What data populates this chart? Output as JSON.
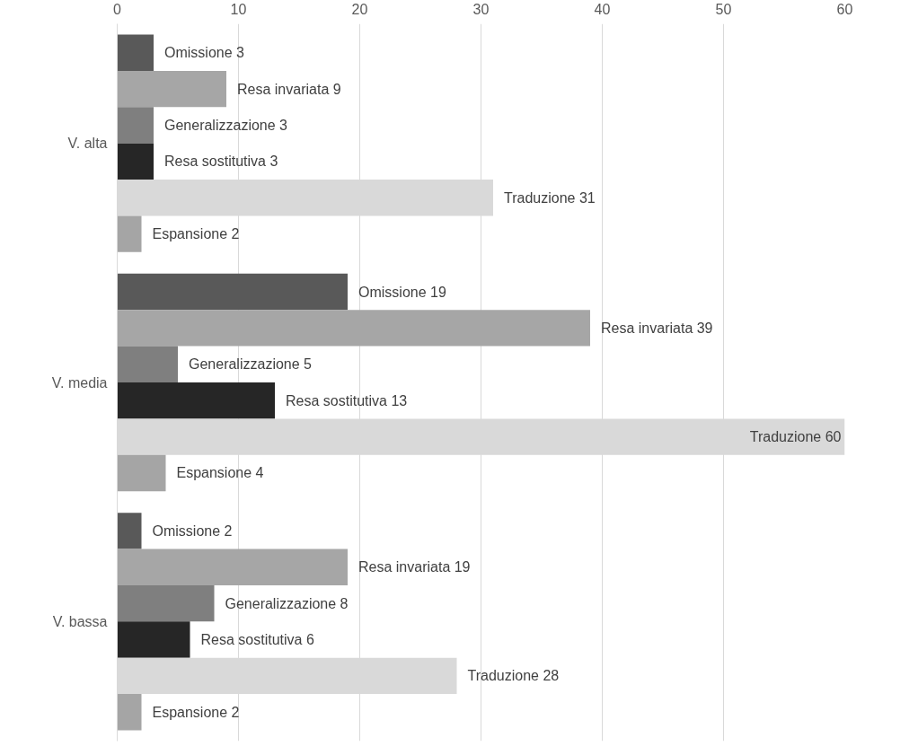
{
  "chart_data": {
    "type": "bar",
    "orientation": "horizontal",
    "categories": [
      "V. alta",
      "V. media",
      "V. bassa"
    ],
    "series": [
      {
        "color": "#595959",
        "values": [
          3,
          19,
          2
        ],
        "value_labels": [
          "Omissione 3",
          "Omissione 19",
          "Omissione 2"
        ]
      },
      {
        "color": "#a6a6a6",
        "values": [
          9,
          39,
          19
        ],
        "value_labels": [
          "Resa invariata 9",
          "Resa invariata 39",
          "Resa invariata 19"
        ]
      },
      {
        "color": "#7f7f7f",
        "values": [
          3,
          5,
          8
        ],
        "value_labels": [
          "Generalizzazione 3",
          "Generalizzazione 5",
          "Generalizzazione 8"
        ]
      },
      {
        "color": "#262626",
        "values": [
          3,
          13,
          6
        ],
        "value_labels": [
          "Resa sostitutiva 3",
          "Resa sostitutiva 13",
          "Resa sostitutiva 6"
        ]
      },
      {
        "color": "#d9d9d9",
        "values": [
          31,
          60,
          28
        ],
        "value_labels": [
          "Traduzione 31",
          "Traduzione 60",
          "Traduzione 28"
        ]
      },
      {
        "color": "#a5a5a5",
        "values": [
          2,
          4,
          2
        ],
        "value_labels": [
          "Espansione 2",
          "Espansione 4",
          "Espansione 2"
        ]
      }
    ],
    "xlim": [
      0,
      60
    ],
    "xticks": [
      0,
      10,
      20,
      30,
      40,
      50,
      60
    ],
    "grid": "x",
    "legend": false
  }
}
